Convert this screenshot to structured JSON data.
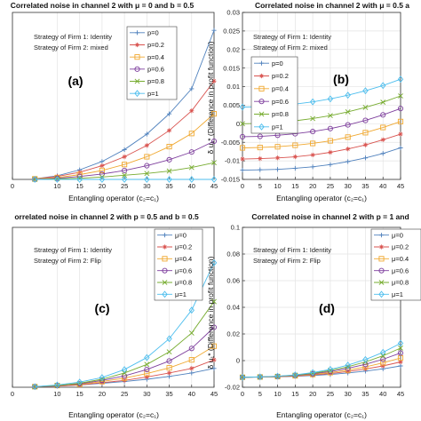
{
  "chart_data": [
    {
      "type": "line",
      "tag": "(a)",
      "title": "Correlated noise in channel 2 with μ = 0 and b = 0.5",
      "xlabel": "Entangling operator (c₂=c₁)",
      "ylabel": "",
      "strategy": [
        "Strategy of Firm 1: Identity",
        "Strategy of Firm 2: mixed"
      ],
      "xlim": [
        0,
        45
      ],
      "ylim": [
        0,
        0.028
      ],
      "xticks": [
        0,
        10,
        15,
        20,
        25,
        30,
        35,
        40,
        45
      ],
      "yticks": [],
      "x": [
        5,
        10,
        15,
        20,
        25,
        30,
        35,
        40,
        45
      ],
      "legend_position": "upper-left",
      "series": [
        {
          "name": "p=0",
          "color": "#4f81bd",
          "marker": "plus",
          "values": [
            0.0001,
            0.0006,
            0.0016,
            0.003,
            0.005,
            0.0076,
            0.011,
            0.0152,
            0.025
          ]
        },
        {
          "name": "p=0.2",
          "color": "#d9534f",
          "marker": "star",
          "values": [
            0.0001,
            0.0005,
            0.0012,
            0.0023,
            0.0038,
            0.0057,
            0.0082,
            0.0115,
            0.0165
          ]
        },
        {
          "name": "p=0.4",
          "color": "#f0a830",
          "marker": "square",
          "values": [
            0.0001,
            0.0003,
            0.0008,
            0.0015,
            0.0025,
            0.0038,
            0.0055,
            0.0077,
            0.011
          ]
        },
        {
          "name": "p=0.6",
          "color": "#7e3f9d",
          "marker": "circle",
          "values": [
            0.0,
            0.0002,
            0.0005,
            0.0009,
            0.0015,
            0.0023,
            0.0033,
            0.0046,
            0.0064
          ]
        },
        {
          "name": "p=0.8",
          "color": "#77ac30",
          "marker": "cross",
          "values": [
            0.0,
            0.0001,
            0.0002,
            0.0004,
            0.0007,
            0.001,
            0.0014,
            0.002,
            0.0028
          ]
        },
        {
          "name": "p=1",
          "color": "#4dbeee",
          "marker": "diamond",
          "values": [
            0.0,
            0.0,
            0.0,
            0.0,
            0.0,
            0.0,
            0.0,
            0.0,
            0.0
          ]
        }
      ]
    },
    {
      "type": "line",
      "tag": "(b)",
      "title": "Correlated noise in channel 2 with μ = 0.5 a",
      "xlabel": "Entangling operator (c₂=c₁)",
      "ylabel": "δ u₁* (Difference in profit function)",
      "strategy": [
        "Strategy of Firm 1: Identity",
        "Strategy of Firm 2: mixed"
      ],
      "xlim": [
        0,
        45
      ],
      "ylim": [
        -0.015,
        0.03
      ],
      "xticks": [
        0,
        5,
        10,
        15,
        20,
        25,
        30,
        35,
        40,
        45
      ],
      "yticks": [
        -0.015,
        -0.01,
        -0.005,
        0,
        0.005,
        0.01,
        0.015,
        0.02,
        0.025,
        0.03
      ],
      "ytick_labels": [
        "-0.015",
        "-0.01",
        "-0.005",
        "0",
        "0.005",
        "0.01",
        "0.015",
        "0.02",
        "0.025",
        "0.03"
      ],
      "x": [
        0,
        5,
        10,
        15,
        20,
        25,
        30,
        35,
        40,
        45
      ],
      "legend_position": "left",
      "series": [
        {
          "name": "p=0",
          "color": "#4f81bd",
          "marker": "plus",
          "values": [
            -0.0125,
            -0.0124,
            -0.0123,
            -0.012,
            -0.0116,
            -0.011,
            -0.0102,
            -0.0092,
            -0.008,
            -0.0065
          ]
        },
        {
          "name": "p=0.2",
          "color": "#d9534f",
          "marker": "star",
          "values": [
            -0.0095,
            -0.0094,
            -0.0092,
            -0.0089,
            -0.0084,
            -0.0077,
            -0.0068,
            -0.0057,
            -0.0043,
            -0.0028
          ]
        },
        {
          "name": "p=0.4",
          "color": "#f0a830",
          "marker": "square",
          "values": [
            -0.0065,
            -0.0064,
            -0.0062,
            -0.0058,
            -0.0053,
            -0.0046,
            -0.0036,
            -0.0024,
            -0.001,
            0.0006
          ]
        },
        {
          "name": "p=0.6",
          "color": "#7e3f9d",
          "marker": "circle",
          "values": [
            -0.0035,
            -0.0034,
            -0.0031,
            -0.0027,
            -0.0021,
            -0.0013,
            -0.0003,
            0.0009,
            0.0024,
            0.0041
          ]
        },
        {
          "name": "p=0.8",
          "color": "#77ac30",
          "marker": "cross",
          "values": [
            0.0,
            0.0001,
            0.0004,
            0.0008,
            0.0014,
            0.0022,
            0.0032,
            0.0044,
            0.0058,
            0.0075
          ]
        },
        {
          "name": "p=1",
          "color": "#4dbeee",
          "marker": "diamond",
          "values": [
            0.0045,
            0.0046,
            0.0049,
            0.0053,
            0.0059,
            0.0067,
            0.0077,
            0.0089,
            0.0103,
            0.012
          ]
        }
      ]
    },
    {
      "type": "line",
      "tag": "(c)",
      "title": "orrelated noise in channel 2 with p = 0.5 and b = 0.5",
      "xlabel": "Entangling operator (c₂=c₁)",
      "ylabel": "",
      "strategy": [
        "Strategy of Firm 1: Identity",
        "Strategy of Firm 2: Flip"
      ],
      "xlim": [
        0,
        45
      ],
      "ylim": [
        0,
        0.028
      ],
      "xticks": [
        0,
        10,
        15,
        20,
        25,
        30,
        35,
        40,
        45
      ],
      "yticks": [],
      "x": [
        5,
        10,
        15,
        20,
        25,
        30,
        35,
        40,
        45
      ],
      "legend_position": "upper-right",
      "series": [
        {
          "name": "μ=0",
          "color": "#4f81bd",
          "marker": "plus",
          "values": [
            0.0001,
            0.0002,
            0.0004,
            0.0007,
            0.001,
            0.0014,
            0.0019,
            0.0025,
            0.0033
          ]
        },
        {
          "name": "μ=0.2",
          "color": "#d9534f",
          "marker": "star",
          "values": [
            0.0001,
            0.0002,
            0.0004,
            0.0008,
            0.0012,
            0.0018,
            0.0025,
            0.0033,
            0.0048
          ]
        },
        {
          "name": "μ=0.4",
          "color": "#f0a830",
          "marker": "square",
          "values": [
            0.0001,
            0.0003,
            0.0005,
            0.001,
            0.0016,
            0.0024,
            0.0034,
            0.0048,
            0.0072
          ]
        },
        {
          "name": "μ=0.6",
          "color": "#7e3f9d",
          "marker": "circle",
          "values": [
            0.0001,
            0.0003,
            0.0006,
            0.0012,
            0.002,
            0.0031,
            0.0046,
            0.0068,
            0.0105
          ]
        },
        {
          "name": "μ=0.8",
          "color": "#77ac30",
          "marker": "cross",
          "values": [
            0.0001,
            0.0003,
            0.0007,
            0.0014,
            0.0025,
            0.004,
            0.0062,
            0.0095,
            0.015
          ]
        },
        {
          "name": "μ=1",
          "color": "#4dbeee",
          "marker": "diamond",
          "values": [
            0.0001,
            0.0004,
            0.0009,
            0.0017,
            0.0031,
            0.0052,
            0.0085,
            0.0135,
            0.0218
          ]
        }
      ]
    },
    {
      "type": "line",
      "tag": "(d)",
      "title": "Correlated noise in channel 2 with p = 1 and",
      "xlabel": "Entangling operator (c₂=c₁)",
      "ylabel": "δ u₁* (Difference in profit function)",
      "strategy": [
        "Strategy of Firm 1: Identity",
        "Strategy of Firm 2: Flip"
      ],
      "xlim": [
        0,
        45
      ],
      "ylim": [
        -0.02,
        0.1
      ],
      "xticks": [
        0,
        5,
        10,
        15,
        20,
        25,
        30,
        35,
        40,
        45
      ],
      "yticks": [
        -0.02,
        0,
        0.02,
        0.04,
        0.06,
        0.08,
        0.1
      ],
      "ytick_labels": [
        "-0.02",
        "0",
        "0.02",
        "0.04",
        "0.06",
        "0.08",
        "0.1"
      ],
      "x": [
        0,
        5,
        10,
        15,
        20,
        25,
        30,
        35,
        40,
        45
      ],
      "legend_position": "upper-right",
      "series": [
        {
          "name": "μ=0",
          "color": "#4f81bd",
          "marker": "plus",
          "values": [
            -0.0125,
            -0.0124,
            -0.0122,
            -0.0118,
            -0.0112,
            -0.0104,
            -0.0093,
            -0.0079,
            -0.0062,
            -0.004
          ]
        },
        {
          "name": "μ=0.2",
          "color": "#d9534f",
          "marker": "star",
          "values": [
            -0.0125,
            -0.0124,
            -0.0121,
            -0.0116,
            -0.0108,
            -0.0097,
            -0.0082,
            -0.0063,
            -0.004,
            -0.001
          ]
        },
        {
          "name": "μ=0.4",
          "color": "#f0a830",
          "marker": "square",
          "values": [
            -0.0125,
            -0.0123,
            -0.012,
            -0.0114,
            -0.0104,
            -0.009,
            -0.0071,
            -0.0047,
            -0.0017,
            0.002
          ]
        },
        {
          "name": "μ=0.6",
          "color": "#7e3f9d",
          "marker": "circle",
          "values": [
            -0.0125,
            -0.0123,
            -0.0119,
            -0.0111,
            -0.0099,
            -0.0082,
            -0.0058,
            -0.0028,
            0.001,
            0.0057
          ]
        },
        {
          "name": "μ=0.8",
          "color": "#77ac30",
          "marker": "cross",
          "values": [
            -0.0125,
            -0.0123,
            -0.0118,
            -0.0109,
            -0.0095,
            -0.0074,
            -0.0046,
            -0.001,
            0.0036,
            0.0094
          ]
        },
        {
          "name": "μ=1",
          "color": "#4dbeee",
          "marker": "diamond",
          "values": [
            -0.0125,
            -0.0122,
            -0.0117,
            -0.0107,
            -0.009,
            -0.0066,
            -0.0034,
            0.0008,
            0.0062,
            0.013
          ]
        }
      ]
    }
  ]
}
